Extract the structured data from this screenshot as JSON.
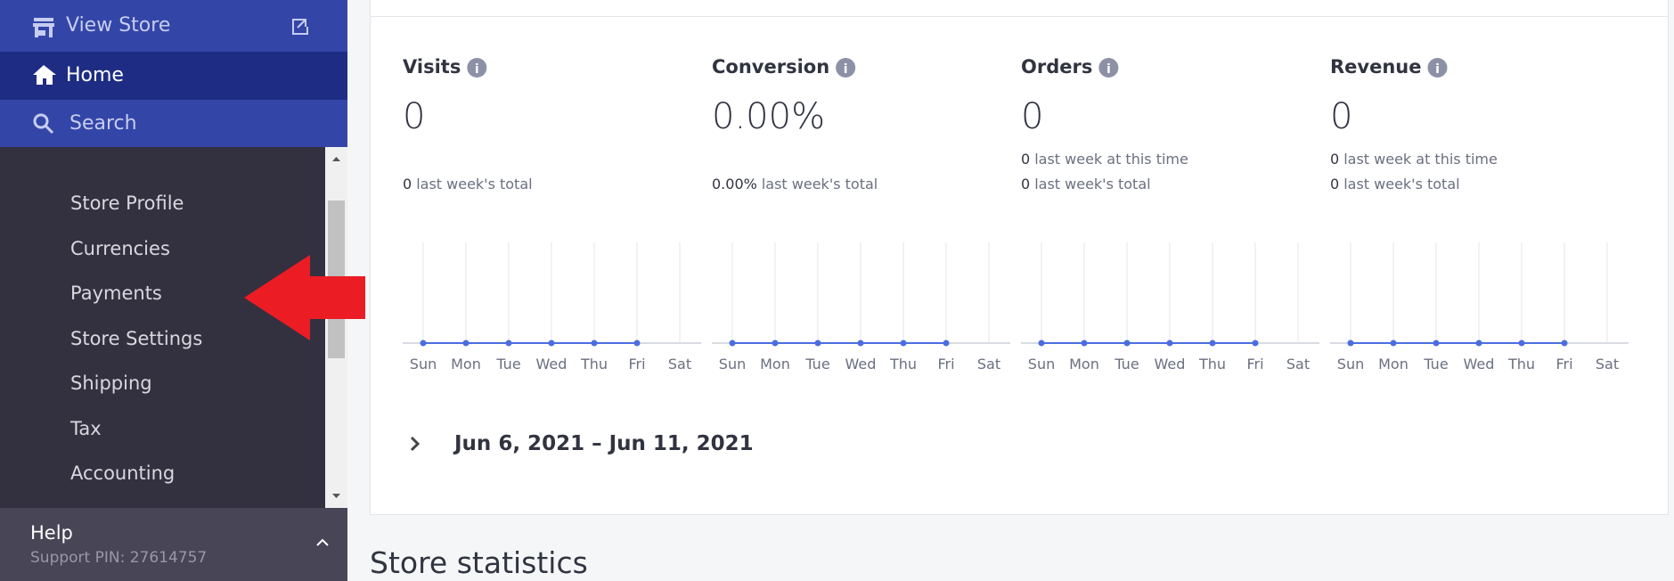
{
  "sidebar": {
    "top": [
      "View Store",
      "Home",
      "Search"
    ],
    "menu": [
      "Store Profile",
      "Currencies",
      "Payments",
      "Store Settings",
      "Shipping",
      "Tax",
      "Accounting"
    ],
    "help": "Help",
    "support_pin": "Support PIN: 27614757"
  },
  "metrics": [
    {
      "label": "Visits",
      "value": "0",
      "lines": [
        {
          "value": "0",
          "label": "last week's total"
        }
      ],
      "chart": {
        "categories": [
          "Sun",
          "Mon",
          "Tue",
          "Wed",
          "Thu",
          "Fri",
          "Sat"
        ],
        "values": [
          0,
          0,
          0,
          0,
          0,
          0,
          null
        ]
      }
    },
    {
      "label": "Conversion",
      "value": "0.00%",
      "lines": [
        {
          "value": "0.00%",
          "label": "last week's total"
        }
      ],
      "chart": {
        "categories": [
          "Sun",
          "Mon",
          "Tue",
          "Wed",
          "Thu",
          "Fri",
          "Sat"
        ],
        "values": [
          0,
          0,
          0,
          0,
          0,
          0,
          null
        ]
      }
    },
    {
      "label": "Orders",
      "value": "0",
      "lines": [
        {
          "value": "0",
          "label": "last week at this time"
        },
        {
          "value": "0",
          "label": "last week's total"
        }
      ],
      "chart": {
        "categories": [
          "Sun",
          "Mon",
          "Tue",
          "Wed",
          "Thu",
          "Fri",
          "Sat"
        ],
        "values": [
          0,
          0,
          0,
          0,
          0,
          0,
          null
        ]
      }
    },
    {
      "label": "Revenue",
      "value": "0",
      "lines": [
        {
          "value": "0",
          "label": "last week at this time"
        },
        {
          "value": "0",
          "label": "last week's total"
        }
      ],
      "chart": {
        "categories": [
          "Sun",
          "Mon",
          "Tue",
          "Wed",
          "Thu",
          "Fri",
          "Sat"
        ],
        "values": [
          0,
          0,
          0,
          0,
          0,
          0,
          null
        ]
      }
    }
  ],
  "date_range": "Jun 6, 2021 – Jun 11, 2021",
  "section_title": "Store statistics"
}
